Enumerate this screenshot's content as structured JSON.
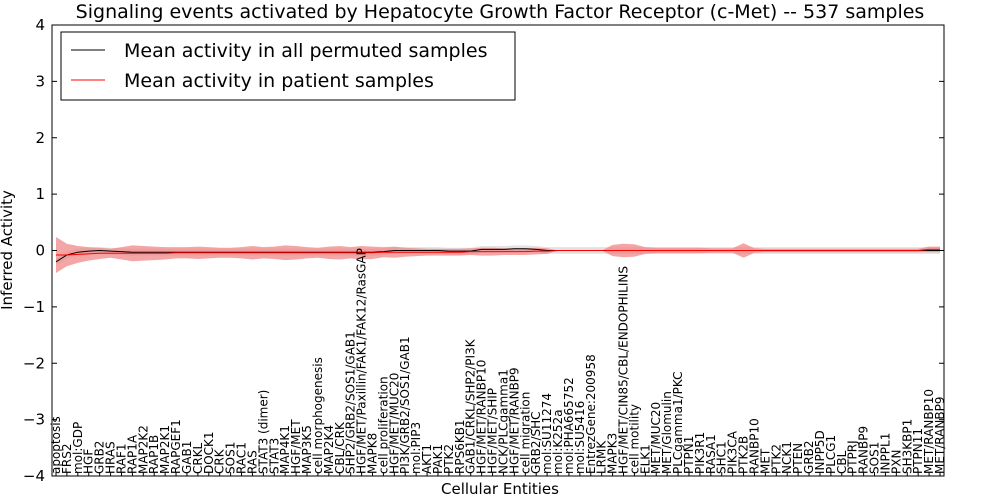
{
  "chart_data": {
    "type": "line",
    "title": "Signaling events activated by Hepatocyte Growth Factor Receptor (c-Met) -- 537 samples",
    "xlabel": "Cellular Entities",
    "ylabel": "Inferred Activity",
    "ylim": [
      -4,
      4
    ],
    "yticks": [
      -4,
      -3,
      -2,
      -1,
      0,
      1,
      2,
      3,
      4
    ],
    "ytick_labels": [
      "−4",
      "−3",
      "−2",
      "−1",
      "0",
      "1",
      "2",
      "3",
      "4"
    ],
    "legend": {
      "location": "top-left",
      "entries": [
        "Mean activity in all permuted samples",
        "Mean activity in patient samples"
      ]
    },
    "colors": {
      "permuted": "#000000",
      "patient": "#ff0000",
      "band_patient": "#f08080",
      "band_permuted": "#c8c8c8"
    },
    "categories": [
      "apoptosis",
      "FRS2",
      "mol:GDP",
      "HGF",
      "GRB2",
      "HRAS",
      "RAF1",
      "RAP1A",
      "MAP2K2",
      "RAP1B",
      "MAP2K1",
      "RAPGEF1",
      "GAB1",
      "CRKL",
      "DOCK1",
      "CRK",
      "SOS1",
      "RAC1",
      "RAS",
      "STAT3 (dimer)",
      "STAT3",
      "MAP4K1",
      "HGF/MET",
      "MAP3K5",
      "cell morphogenesis",
      "MAP2K4",
      "CBL/CRK",
      "SHP2/GRB2/SOS1/GAB1",
      "HGF/MET/Paxillin/FAK1/FAK12/RasGAP",
      "MAPK8",
      "cell proliferation",
      "HGF/MET/MUC20",
      "PI3K/GRB2/SOS1/GAB1",
      "mol:PIP3",
      "AKT1",
      "PAK1",
      "PTK2",
      "RPS6KB1",
      "GAB1/CRKL/SHP2/PI3K",
      "HGF/MET/RANBP10",
      "HGF/MET/SHIP",
      "NCK/PLCgamma1",
      "HGF/MET/RANBP9",
      "cell migration",
      "GRB2/SHC",
      "mol:SU11274",
      "mol:K252a",
      "mol:PHA665752",
      "mol:SU5416",
      "EntrezGene:200958",
      "LRMK",
      "MAPK3",
      "HGF/MET/CIN85/CBL/ENDOPHILINS",
      "cell motility",
      "ELK1",
      "MET/MUC20",
      "MET/Glomulin",
      "PLCgamma1/PKC",
      "PTPN1",
      "PIK3R1",
      "RASA1",
      "SHC1",
      "PIK3CA",
      "PTK2B",
      "RANBP10",
      "MET",
      "PTK2",
      "NCK1",
      "PTEN",
      "GRB2",
      "INPP5D",
      "PLCG1",
      "CBL",
      "PTPRJ",
      "RANBP9",
      "SOS1",
      "INPPL1",
      "PXN",
      "SH3KBP1",
      "PTPN11",
      "MET/RANBP10",
      "MET/RANBP9"
    ],
    "series": [
      {
        "name": "Mean activity in all permuted samples",
        "values": [
          -0.2,
          -0.08,
          -0.03,
          -0.01,
          0.0,
          -0.01,
          -0.02,
          -0.03,
          -0.03,
          -0.03,
          -0.03,
          -0.03,
          -0.03,
          -0.03,
          -0.03,
          -0.03,
          -0.03,
          -0.03,
          -0.03,
          -0.03,
          -0.03,
          -0.03,
          -0.03,
          -0.03,
          -0.03,
          -0.03,
          -0.03,
          -0.03,
          -0.03,
          -0.03,
          -0.02,
          0.0,
          0.0,
          0.0,
          0.0,
          0.0,
          -0.01,
          -0.01,
          -0.01,
          0.02,
          0.02,
          0.02,
          0.03,
          0.03,
          0.02,
          0.0,
          0.0,
          0.0,
          0.0,
          0.0,
          0.0,
          0.0,
          0.0,
          0.0,
          0.0,
          0.0,
          0.0,
          0.0,
          0.0,
          0.0,
          0.0,
          0.0,
          0.0,
          0.0,
          0.0,
          0.0,
          0.0,
          0.0,
          0.0,
          0.0,
          0.0,
          0.0,
          0.0,
          0.0,
          0.0,
          0.0,
          0.0,
          0.0,
          0.0,
          0.0,
          0.0,
          0.0
        ]
      },
      {
        "name": "Mean activity in patient samples",
        "values": [
          -0.08,
          -0.08,
          -0.07,
          -0.06,
          -0.05,
          -0.05,
          -0.05,
          -0.05,
          -0.05,
          -0.05,
          -0.05,
          -0.04,
          -0.04,
          -0.04,
          -0.04,
          -0.04,
          -0.04,
          -0.04,
          -0.04,
          -0.04,
          -0.04,
          -0.04,
          -0.04,
          -0.04,
          -0.04,
          -0.04,
          -0.04,
          -0.04,
          -0.04,
          -0.04,
          -0.03,
          -0.03,
          -0.03,
          -0.03,
          -0.03,
          -0.03,
          -0.03,
          -0.03,
          -0.02,
          -0.02,
          -0.02,
          -0.02,
          -0.02,
          -0.02,
          -0.01,
          -0.01,
          0.0,
          0.0,
          0.0,
          0.0,
          0.0,
          0.0,
          0.0,
          0.0,
          0.0,
          0.0,
          0.0,
          0.0,
          0.0,
          0.0,
          0.0,
          0.0,
          0.0,
          0.0,
          0.0,
          0.0,
          0.0,
          0.0,
          0.0,
          0.0,
          0.0,
          0.0,
          0.0,
          0.0,
          0.0,
          0.0,
          0.0,
          0.0,
          0.0,
          0.0,
          0.02,
          0.02
        ]
      }
    ],
    "band_half_width": [
      0.32,
      0.2,
      0.15,
      0.12,
      0.1,
      0.08,
      0.11,
      0.14,
      0.13,
      0.12,
      0.11,
      0.1,
      0.1,
      0.11,
      0.1,
      0.09,
      0.09,
      0.1,
      0.12,
      0.1,
      0.11,
      0.13,
      0.12,
      0.1,
      0.09,
      0.11,
      0.12,
      0.1,
      0.12,
      0.11,
      0.09,
      0.1,
      0.08,
      0.07,
      0.06,
      0.06,
      0.06,
      0.06,
      0.06,
      0.07,
      0.07,
      0.06,
      0.06,
      0.06,
      0.06,
      0.05,
      0.0,
      0.0,
      0.0,
      0.0,
      0.0,
      0.1,
      0.12,
      0.11,
      0.06,
      0.05,
      0.05,
      0.05,
      0.05,
      0.05,
      0.04,
      0.04,
      0.04,
      0.13,
      0.04,
      0.03,
      0.03,
      0.03,
      0.03,
      0.03,
      0.03,
      0.03,
      0.03,
      0.03,
      0.03,
      0.03,
      0.03,
      0.03,
      0.03,
      0.03,
      0.05,
      0.05
    ],
    "grey_band_half_width": [
      0.06,
      0.06,
      0.06,
      0.06,
      0.06,
      0.06,
      0.06,
      0.06,
      0.06,
      0.06,
      0.06,
      0.06,
      0.06,
      0.06,
      0.06,
      0.06,
      0.06,
      0.06,
      0.06,
      0.06,
      0.06,
      0.06,
      0.06,
      0.06,
      0.06,
      0.06,
      0.06,
      0.06,
      0.06,
      0.06,
      0.06,
      0.06,
      0.06,
      0.06,
      0.06,
      0.06,
      0.06,
      0.06,
      0.06,
      0.06,
      0.06,
      0.06,
      0.06,
      0.06,
      0.06,
      0.06,
      0.06,
      0.06,
      0.06,
      0.06,
      0.06,
      0.06,
      0.06,
      0.06,
      0.06,
      0.06,
      0.06,
      0.06,
      0.06,
      0.06,
      0.06,
      0.06,
      0.06,
      0.06,
      0.06,
      0.06,
      0.06,
      0.06,
      0.06,
      0.06,
      0.06,
      0.06,
      0.06,
      0.06,
      0.06,
      0.06,
      0.06,
      0.06,
      0.06,
      0.06,
      0.06,
      0.06
    ]
  }
}
